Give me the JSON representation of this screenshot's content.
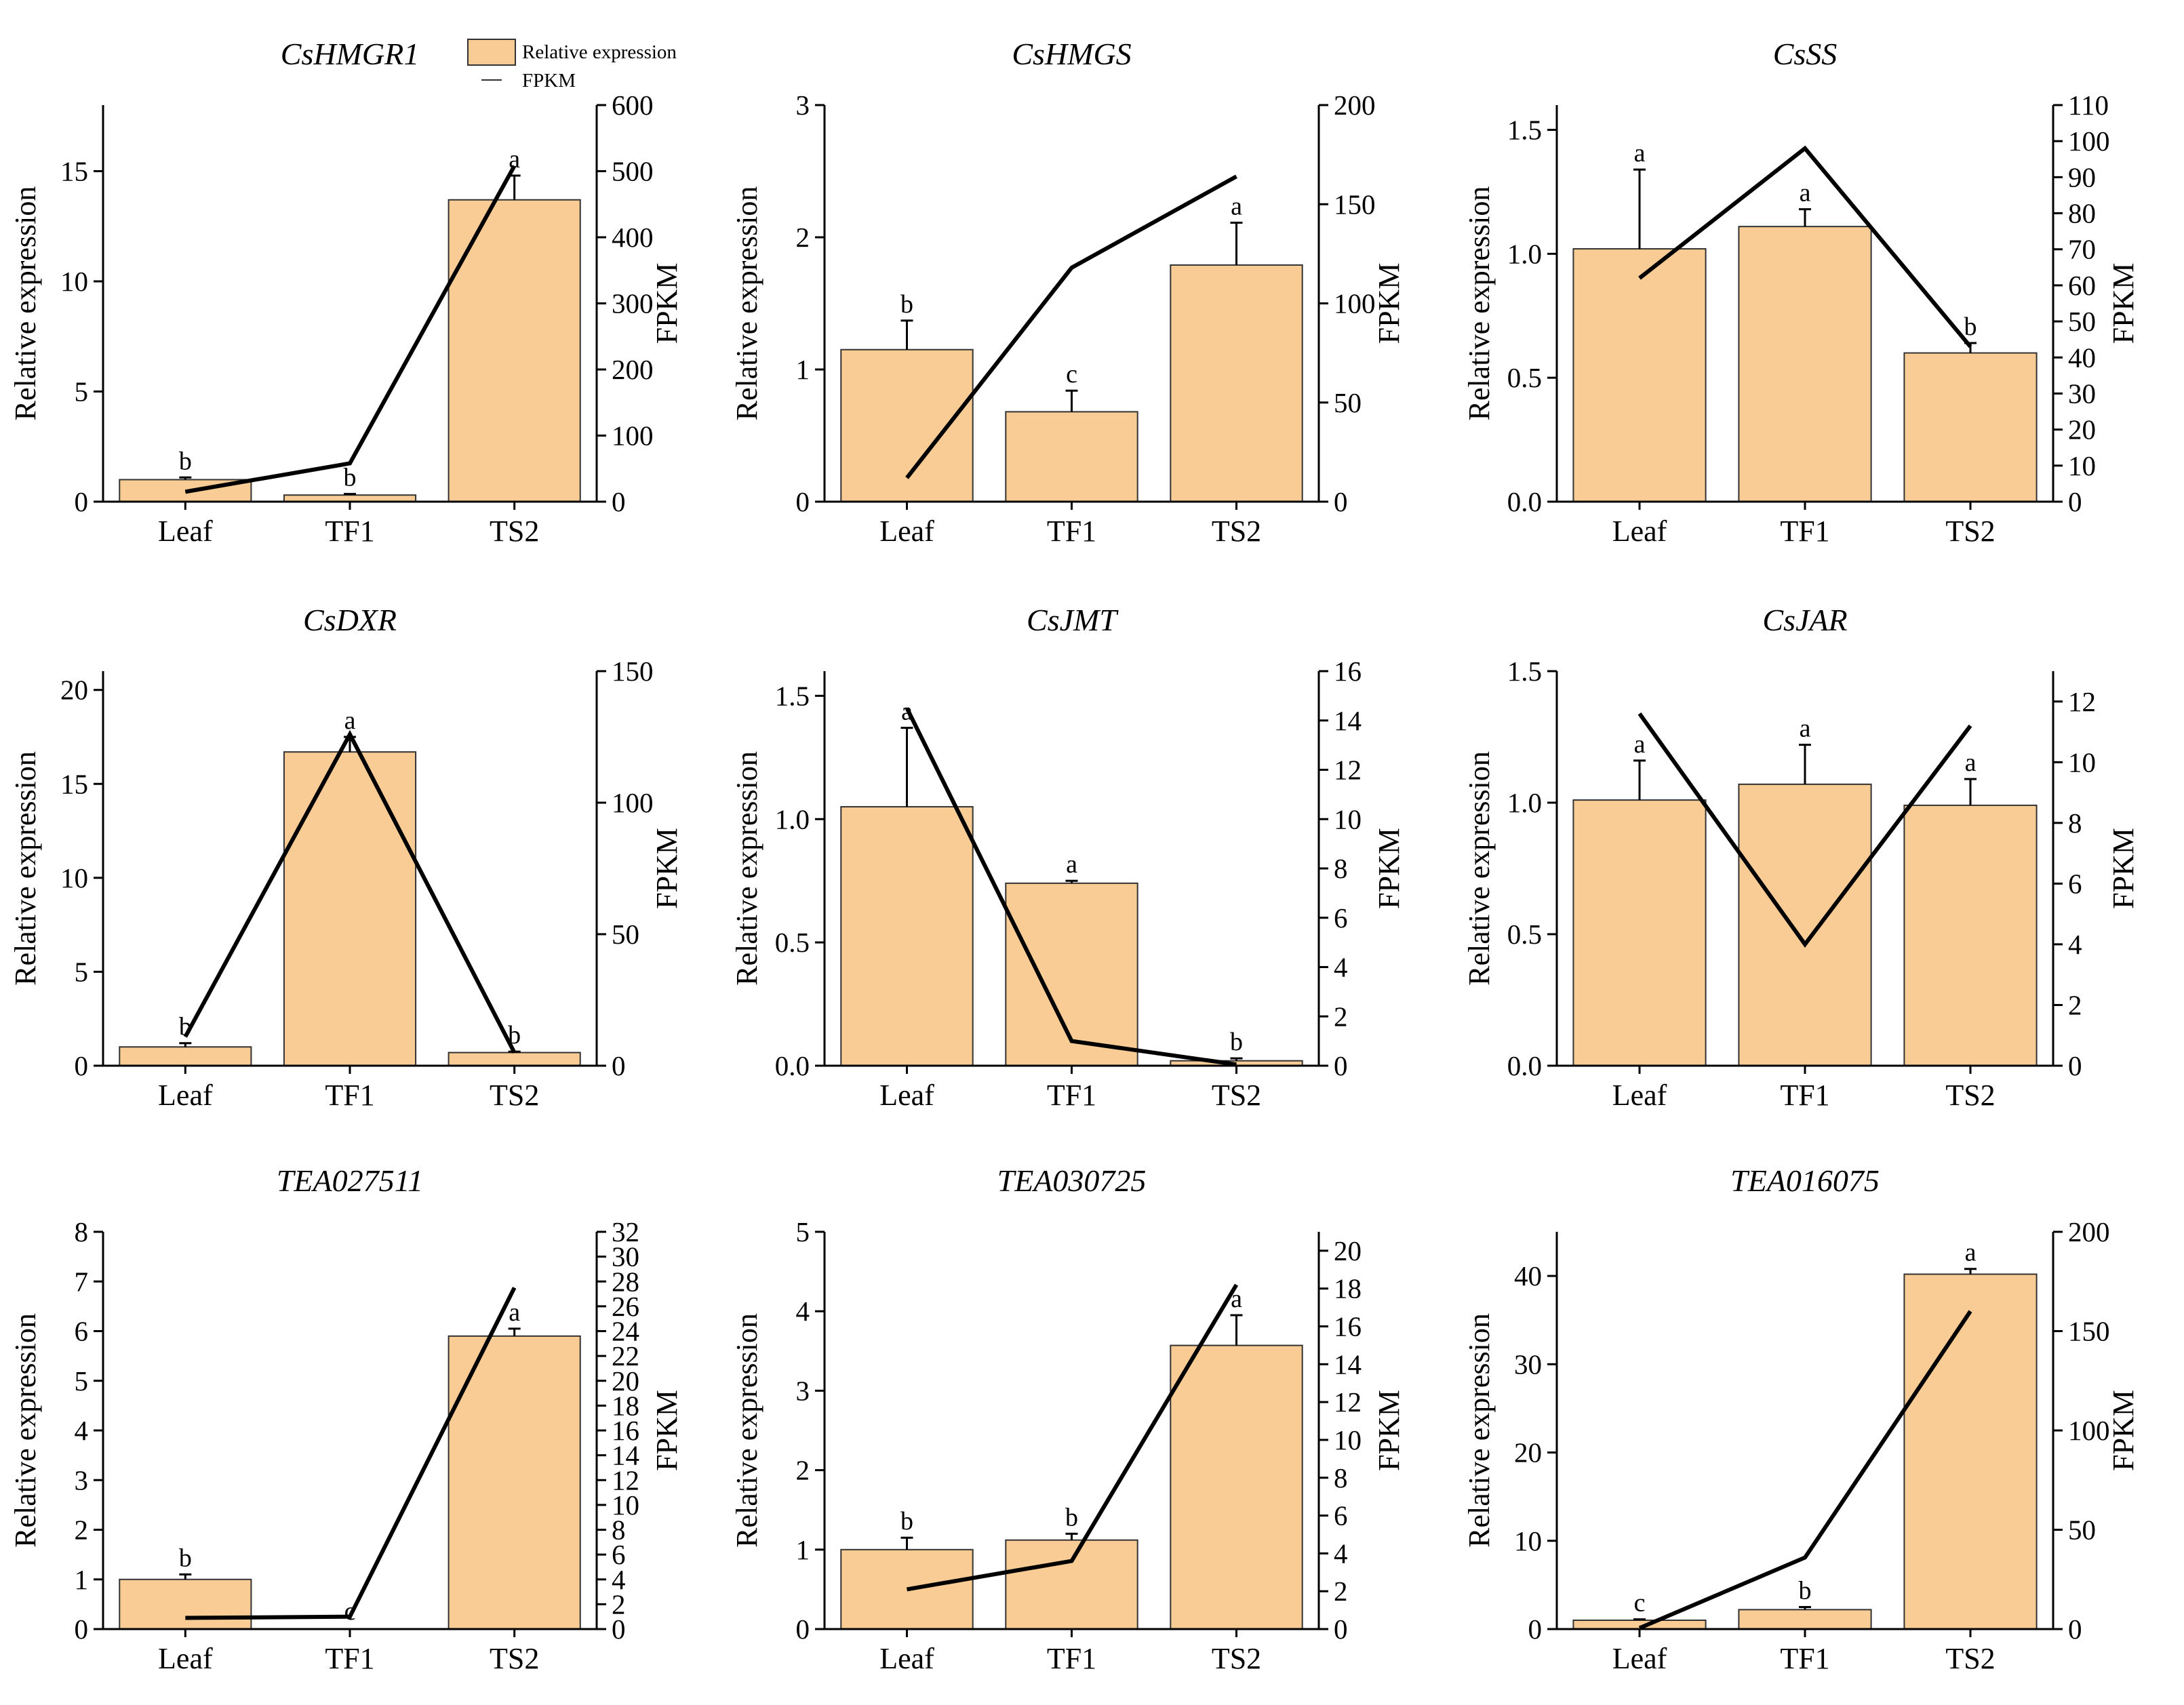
{
  "figure": {
    "legend": {
      "bar_label": "Relative expression",
      "line_label": "FPKM",
      "bar_color": "#f8cc94",
      "line_color": "#000000"
    },
    "y_left_label": "Relative expression",
    "y_right_label": "FPKM"
  },
  "chart_data": [
    {
      "type": "bar+line",
      "title": "CsHMGR1",
      "categories": [
        "Leaf",
        "TF1",
        "TS2"
      ],
      "values": [
        1.0,
        0.3,
        13.7
      ],
      "errors": [
        0.1,
        0.05,
        1.1
      ],
      "sig_letters": [
        "b",
        "b",
        "a"
      ],
      "fpkm": [
        15,
        58,
        508
      ],
      "ylim_left": [
        0,
        18
      ],
      "yticks_left": [
        0,
        5,
        10,
        15
      ],
      "ytick_labels_left": [
        "0",
        "5",
        "10",
        "15"
      ],
      "ylim_right": [
        0,
        600
      ],
      "yticks_right": [
        0,
        100,
        200,
        300,
        400,
        500,
        600
      ],
      "ytick_labels_right": [
        "0",
        "100",
        "200",
        "300",
        "400",
        "500",
        "600"
      ]
    },
    {
      "type": "bar+line",
      "title": "CsHMGS",
      "categories": [
        "Leaf",
        "TF1",
        "TS2"
      ],
      "values": [
        1.15,
        0.68,
        1.79
      ],
      "errors": [
        0.22,
        0.16,
        0.32
      ],
      "sig_letters": [
        "b",
        "c",
        "a"
      ],
      "fpkm": [
        12,
        118,
        164
      ],
      "ylim_left": [
        0,
        3
      ],
      "yticks_left": [
        0,
        1,
        2,
        3
      ],
      "ytick_labels_left": [
        "0",
        "1",
        "2",
        "3"
      ],
      "ylim_right": [
        0,
        200
      ],
      "yticks_right": [
        0,
        50,
        100,
        150,
        200
      ],
      "ytick_labels_right": [
        "0",
        "50",
        "100",
        "150",
        "200"
      ]
    },
    {
      "type": "bar+line",
      "title": "CsSS",
      "categories": [
        "Leaf",
        "TF1",
        "TS2"
      ],
      "values": [
        1.02,
        1.11,
        0.6
      ],
      "errors": [
        0.32,
        0.07,
        0.04
      ],
      "sig_letters": [
        "a",
        "a",
        "b"
      ],
      "fpkm": [
        62,
        98,
        43
      ],
      "ylim_left": [
        0,
        1.6
      ],
      "yticks_left": [
        0,
        0.5,
        1.0,
        1.5
      ],
      "ytick_labels_left": [
        "0.0",
        "0.5",
        "1.0",
        "1.5"
      ],
      "ylim_right": [
        0,
        110
      ],
      "yticks_right": [
        0,
        10,
        20,
        30,
        40,
        50,
        60,
        70,
        80,
        90,
        100,
        110
      ],
      "ytick_labels_right": [
        "0",
        "10",
        "20",
        "30",
        "40",
        "50",
        "60",
        "70",
        "80",
        "90",
        "100",
        "110"
      ]
    },
    {
      "type": "bar+line",
      "title": "CsDXR",
      "categories": [
        "Leaf",
        "TF1",
        "TS2"
      ],
      "values": [
        1.0,
        16.7,
        0.7
      ],
      "errors": [
        0.2,
        0.8,
        0.05
      ],
      "sig_letters": [
        "b",
        "a",
        "b"
      ],
      "fpkm": [
        11,
        126,
        5
      ],
      "ylim_left": [
        0,
        21
      ],
      "yticks_left": [
        0,
        5,
        10,
        15,
        20
      ],
      "ytick_labels_left": [
        "0",
        "5",
        "10",
        "15",
        "20"
      ],
      "ylim_right": [
        0,
        150
      ],
      "yticks_right": [
        0,
        50,
        100,
        150
      ],
      "ytick_labels_right": [
        "0",
        "50",
        "100",
        "150"
      ]
    },
    {
      "type": "bar+line",
      "title": "CsJMT",
      "categories": [
        "Leaf",
        "TF1",
        "TS2"
      ],
      "values": [
        1.05,
        0.74,
        0.02
      ],
      "errors": [
        0.32,
        0.01,
        0.01
      ],
      "sig_letters": [
        "a",
        "a",
        "b"
      ],
      "fpkm": [
        14.5,
        1.0,
        0.05
      ],
      "ylim_left": [
        0,
        1.6
      ],
      "yticks_left": [
        0,
        0.5,
        1.0,
        1.5
      ],
      "ytick_labels_left": [
        "0.0",
        "0.5",
        "1.0",
        "1.5"
      ],
      "ylim_right": [
        0,
        16
      ],
      "yticks_right": [
        0,
        2,
        4,
        6,
        8,
        10,
        12,
        14,
        16
      ],
      "ytick_labels_right": [
        "0",
        "2",
        "4",
        "6",
        "8",
        "10",
        "12",
        "14",
        "16"
      ]
    },
    {
      "type": "bar+line",
      "title": "CsJAR",
      "categories": [
        "Leaf",
        "TF1",
        "TS2"
      ],
      "values": [
        1.01,
        1.07,
        0.99
      ],
      "errors": [
        0.15,
        0.15,
        0.1
      ],
      "sig_letters": [
        "a",
        "a",
        "a"
      ],
      "fpkm": [
        11.6,
        4.0,
        11.2
      ],
      "ylim_left": [
        0,
        1.5
      ],
      "yticks_left": [
        0,
        0.5,
        1.0,
        1.5
      ],
      "ytick_labels_left": [
        "0.0",
        "0.5",
        "1.0",
        "1.5"
      ],
      "ylim_right": [
        0,
        13
      ],
      "yticks_right": [
        0,
        2,
        4,
        6,
        8,
        10,
        12
      ],
      "ytick_labels_right": [
        "0",
        "2",
        "4",
        "6",
        "8",
        "10",
        "12"
      ]
    },
    {
      "type": "bar+line",
      "title": "TEA027511",
      "categories": [
        "Leaf",
        "TF1",
        "TS2"
      ],
      "values": [
        1.0,
        0.0,
        5.9
      ],
      "errors": [
        0.1,
        0.0,
        0.15
      ],
      "sig_letters": [
        "b",
        "c",
        "a"
      ],
      "fpkm": [
        0.9,
        1.0,
        27.5
      ],
      "ylim_left": [
        0,
        8
      ],
      "yticks_left": [
        0,
        1,
        2,
        3,
        4,
        5,
        6,
        7,
        8
      ],
      "ytick_labels_left": [
        "0",
        "1",
        "2",
        "3",
        "4",
        "5",
        "6",
        "7",
        "8"
      ],
      "ylim_right": [
        0,
        32
      ],
      "yticks_right": [
        0,
        2,
        4,
        6,
        8,
        10,
        12,
        14,
        16,
        18,
        20,
        22,
        24,
        26,
        28,
        30,
        32
      ],
      "ytick_labels_right": [
        "0",
        "2",
        "4",
        "6",
        "8",
        "10",
        "12",
        "14",
        "16",
        "18",
        "20",
        "22",
        "24",
        "26",
        "28",
        "30",
        "32"
      ]
    },
    {
      "type": "bar+line",
      "title": "TEA030725",
      "categories": [
        "Leaf",
        "TF1",
        "TS2"
      ],
      "values": [
        1.0,
        1.12,
        3.57
      ],
      "errors": [
        0.15,
        0.08,
        0.38
      ],
      "sig_letters": [
        "b",
        "b",
        "a"
      ],
      "fpkm": [
        2.1,
        3.6,
        18.2
      ],
      "ylim_left": [
        0,
        5
      ],
      "yticks_left": [
        0,
        1,
        2,
        3,
        4,
        5
      ],
      "ytick_labels_left": [
        "0",
        "1",
        "2",
        "3",
        "4",
        "5"
      ],
      "ylim_right": [
        0,
        21
      ],
      "yticks_right": [
        0,
        2,
        4,
        6,
        8,
        10,
        12,
        14,
        16,
        18,
        20
      ],
      "ytick_labels_right": [
        "0",
        "2",
        "4",
        "6",
        "8",
        "10",
        "12",
        "14",
        "16",
        "18",
        "20"
      ]
    },
    {
      "type": "bar+line",
      "title": "TEA016075",
      "categories": [
        "Leaf",
        "TF1",
        "TS2"
      ],
      "values": [
        1.0,
        2.2,
        40.2
      ],
      "errors": [
        0.1,
        0.3,
        0.6
      ],
      "sig_letters": [
        "c",
        "b",
        "a"
      ],
      "fpkm": [
        0.5,
        36,
        160
      ],
      "ylim_left": [
        0,
        45
      ],
      "yticks_left": [
        0,
        10,
        20,
        30,
        40
      ],
      "ytick_labels_left": [
        "0",
        "10",
        "20",
        "30",
        "40"
      ],
      "ylim_right": [
        0,
        200
      ],
      "yticks_right": [
        0,
        50,
        100,
        150,
        200
      ],
      "ytick_labels_right": [
        "0",
        "50",
        "100",
        "150",
        "200"
      ]
    }
  ]
}
